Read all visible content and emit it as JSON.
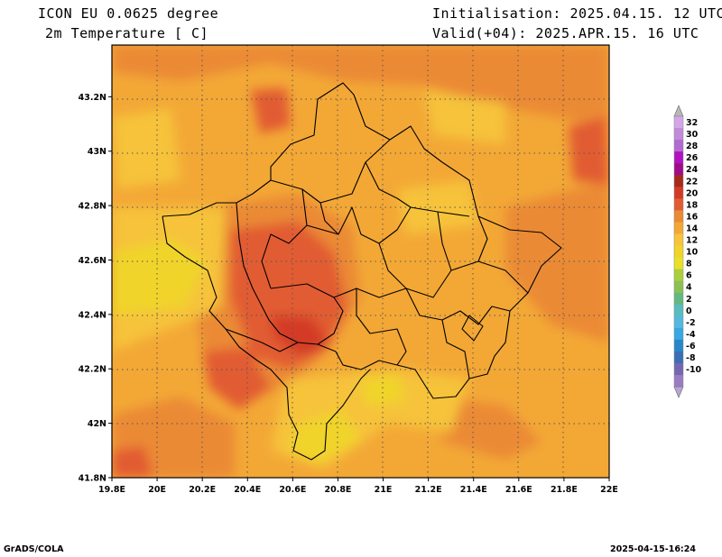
{
  "header": {
    "model_line": "ICON EU 0.0625 degree",
    "field_line": "2m Temperature [ C]",
    "init_line": "Initialisation: 2025.04.15. 12 UTC",
    "valid_line": "Valid(+04): 2025.APR.15. 16 UTC"
  },
  "map": {
    "lon_labels": [
      "19.8E",
      "20E",
      "20.2E",
      "20.4E",
      "20.6E",
      "20.8E",
      "21E",
      "21.2E",
      "21.4E",
      "21.6E",
      "21.8E",
      "22E"
    ],
    "lon_values": [
      19.8,
      20.0,
      20.2,
      20.4,
      20.6,
      20.8,
      21.0,
      21.2,
      21.4,
      21.6,
      21.8,
      22.0
    ],
    "lat_labels": [
      "41.8N",
      "42N",
      "42.2N",
      "42.4N",
      "42.6N",
      "42.8N",
      "43N",
      "43.2N"
    ],
    "lat_values": [
      41.8,
      42.0,
      42.2,
      42.4,
      42.6,
      42.8,
      43.0,
      43.2
    ],
    "lon_range": [
      19.8,
      22.0
    ],
    "lat_range": [
      41.8,
      43.39
    ],
    "grid": true
  },
  "colorbar": {
    "labels": [
      "32",
      "30",
      "28",
      "26",
      "24",
      "22",
      "20",
      "18",
      "16",
      "14",
      "12",
      "10",
      "8",
      "6",
      "4",
      "2",
      "0",
      "-2",
      "-4",
      "-6",
      "-8",
      "-10"
    ],
    "colors": [
      "#d3a6e8",
      "#c28ad9",
      "#b26bd0",
      "#b012c1",
      "#a10b8a",
      "#a52a1c",
      "#d33a26",
      "#e15c33",
      "#eb8a35",
      "#f3a836",
      "#f6c33a",
      "#f0d42b",
      "#e9e02a",
      "#a9cf3c",
      "#8bc053",
      "#65b980",
      "#58bdbc",
      "#55b8de",
      "#38a8e0",
      "#2787c9",
      "#3a6fb5",
      "#7367b1",
      "#9a7cc4"
    ],
    "top_arrow_color": "#b8b8b8",
    "bottom_arrow_color": "#b9a4d9"
  },
  "footer": {
    "left": "GrADS/COLA",
    "right": "2025-04-15-16:24"
  }
}
